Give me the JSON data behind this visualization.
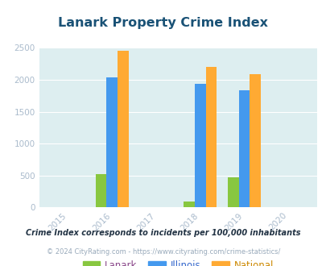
{
  "title": "Lanark Property Crime Index",
  "title_color": "#1a5276",
  "title_fontsize": 11.5,
  "years": [
    2015,
    2016,
    2017,
    2018,
    2019,
    2020
  ],
  "data": {
    "2016": {
      "lanark": 525,
      "illinois": 2040,
      "national": 2450
    },
    "2018": {
      "lanark": 90,
      "illinois": 1935,
      "national": 2200
    },
    "2019": {
      "lanark": 470,
      "illinois": 1840,
      "national": 2090
    }
  },
  "bar_colors": {
    "lanark": "#88c740",
    "illinois": "#4499ee",
    "national": "#ffaa33"
  },
  "legend_text_colors": {
    "lanark": "#884488",
    "illinois": "#3366cc",
    "national": "#cc8800"
  },
  "bg_color": "#ddeef0",
  "ylim": [
    0,
    2500
  ],
  "yticks": [
    0,
    500,
    1000,
    1500,
    2000,
    2500
  ],
  "legend_labels": [
    "Lanark",
    "Illinois",
    "National"
  ],
  "footnote1": "Crime Index corresponds to incidents per 100,000 inhabitants",
  "footnote2": "© 2024 CityRating.com - https://www.cityrating.com/crime-statistics/",
  "footnote1_color": "#223344",
  "footnote2_color": "#99aabb",
  "bar_width": 0.25
}
